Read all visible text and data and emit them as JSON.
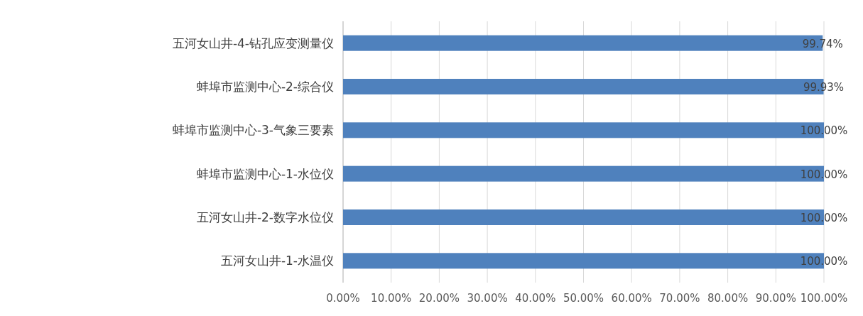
{
  "chart_data": {
    "type": "bar",
    "orientation": "horizontal",
    "categories": [
      "五河女山井-4-钻孔应变测量仪",
      "蚌埠市监测中心-2-综合仪",
      "蚌埠市监测中心-3-气象三要素",
      "蚌埠市监测中心-1-水位仪",
      "五河女山井-2-数字水位仪",
      "五河女山井-1-水温仪"
    ],
    "values": [
      99.74,
      99.93,
      100,
      100,
      100,
      100
    ],
    "color": "#4f81bd",
    "xlim": [
      0,
      100
    ],
    "xticks": [
      {
        "value": 0,
        "label": "0.00%"
      },
      {
        "value": 10,
        "label": "10.00%"
      },
      {
        "value": 20,
        "label": "20.00%"
      },
      {
        "value": 30,
        "label": "30.00%"
      },
      {
        "value": 40,
        "label": "40.00%"
      },
      {
        "value": 50,
        "label": "50.00%"
      },
      {
        "value": 60,
        "label": "60.00%"
      },
      {
        "value": 70,
        "label": "70.00%"
      },
      {
        "value": 80,
        "label": "80.00%"
      },
      {
        "value": 90,
        "label": "90.00%"
      },
      {
        "value": 100,
        "label": "100.00%"
      }
    ],
    "grid": "x",
    "value_labels": [
      "99.74%",
      "99.93%",
      "100.00%",
      "100.00%",
      "100.00%",
      "100.00%"
    ]
  }
}
